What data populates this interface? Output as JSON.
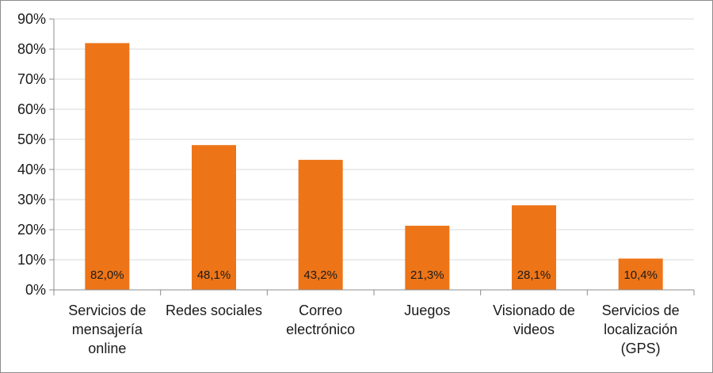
{
  "chart_data": {
    "type": "bar",
    "categories": [
      [
        "Servicios de",
        "mensajería",
        "online"
      ],
      [
        "Redes sociales"
      ],
      [
        "Correo",
        "electrónico"
      ],
      [
        "Juegos"
      ],
      [
        "Visionado de",
        "videos"
      ],
      [
        "Servicios de",
        "localización",
        "(GPS)"
      ]
    ],
    "values": [
      82.0,
      48.1,
      43.2,
      21.3,
      28.1,
      10.4
    ],
    "data_labels": [
      "82,0%",
      "48,1%",
      "43,2%",
      "21,3%",
      "28,1%",
      "10,4%"
    ],
    "y_ticks": [
      "0%",
      "10%",
      "20%",
      "30%",
      "40%",
      "50%",
      "60%",
      "70%",
      "80%",
      "90%"
    ],
    "ylim": [
      0,
      90
    ],
    "grid": true,
    "legend": "none",
    "bar_color": "#ED7518",
    "grid_color": "#D9D9D9",
    "axis_color": "#8C8C8C"
  }
}
